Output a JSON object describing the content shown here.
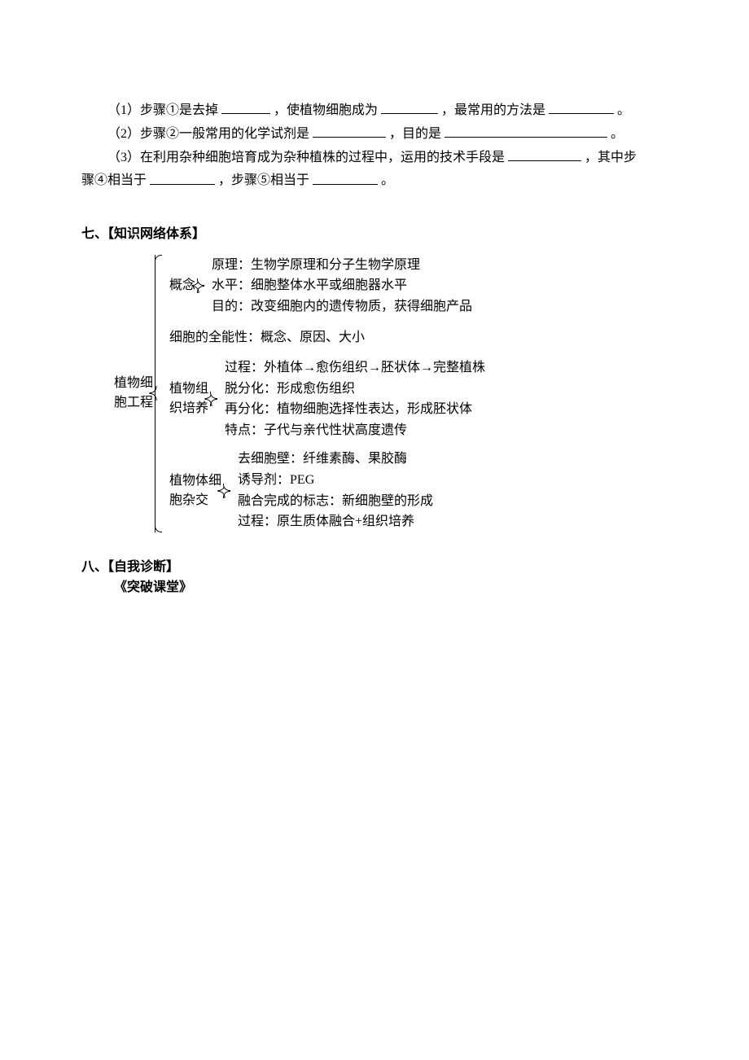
{
  "questions": {
    "q1_prefix": "（1）步骤①是去掉",
    "q1_mid1": "，使植物细胞成为 ",
    "q1_mid2": "，最常用的方法是",
    "q1_end": "。",
    "q2_prefix": "（2）步骤②一般常用的化学试剂是",
    "q2_mid": "，目的是",
    "q2_end": "。",
    "q3_prefix": "（3）在利用杂种细胞培育成为杂种植株的过程中，运用的技术手段是",
    "q3_mid1": "，其中步",
    "q3_line2_prefix": "骤④相当于",
    "q3_mid2": "，步骤⑤相当于",
    "q3_end": "。"
  },
  "section7_title": "七、【知识网络体系】",
  "tree": {
    "root": "植物细\n胞工程",
    "b1": {
      "label": "概念",
      "leaves": [
        "原理：生物学原理和分子生物学原理",
        "水平：细胞整体水平或细胞器水平",
        "目的：改变细胞内的遗传物质，获得细胞产品"
      ]
    },
    "b2_leaf": "细胞的全能性：概念、原因、大小",
    "b3": {
      "label": "植物组\n织培养",
      "leaves": [
        "过程：外植体→愈伤组织→胚状体→完整植株",
        "脱分化：形成愈伤组织",
        "再分化：植物细胞选择性表达，形成胚状体",
        "特点：子代与亲代性状高度遗传"
      ]
    },
    "b4": {
      "label": "植物体细\n胞杂交",
      "leaves": [
        "去细胞壁：纤维素酶、果胶酶",
        "诱导剂：PEG",
        "融合完成的标志：新细胞壁的形成",
        "过程：原生质体融合+组织培养"
      ]
    }
  },
  "section8_title": "八、【自我诊断】",
  "section8_sub": "《突破课堂》"
}
